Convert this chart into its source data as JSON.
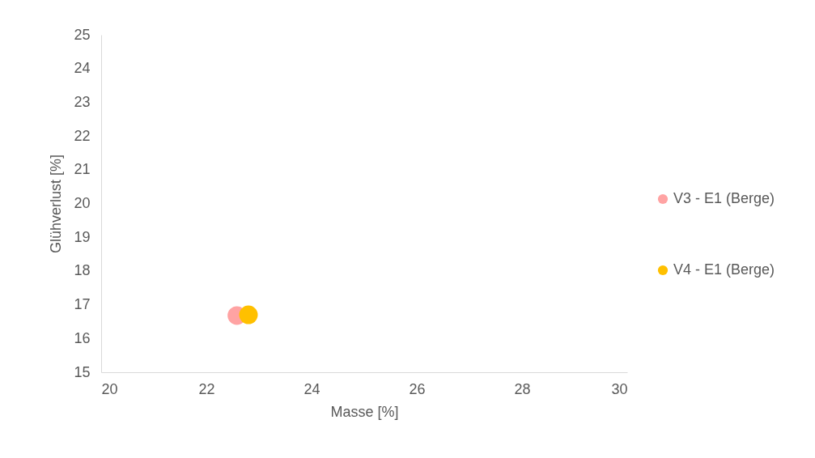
{
  "chart_data": {
    "type": "scatter",
    "xlabel": "Masse [%]",
    "ylabel": "Glühverlust [%]",
    "xlim": [
      20,
      30
    ],
    "xticks": [
      20,
      22,
      24,
      26,
      28,
      30
    ],
    "ylim": [
      15,
      25
    ],
    "yticks": [
      15,
      16,
      17,
      18,
      19,
      20,
      21,
      22,
      23,
      24,
      25
    ],
    "grid": false,
    "legend": "right",
    "marker": "circle",
    "series": [
      {
        "name": "V3 - E1 (Berge)",
        "color": "#ffa3a3",
        "x": [
          22.58
        ],
        "values": [
          16.68
        ]
      },
      {
        "name": "V4 - E1 (Berge)",
        "color": "#ffc000",
        "x": [
          22.8
        ],
        "values": [
          16.7
        ]
      }
    ]
  }
}
